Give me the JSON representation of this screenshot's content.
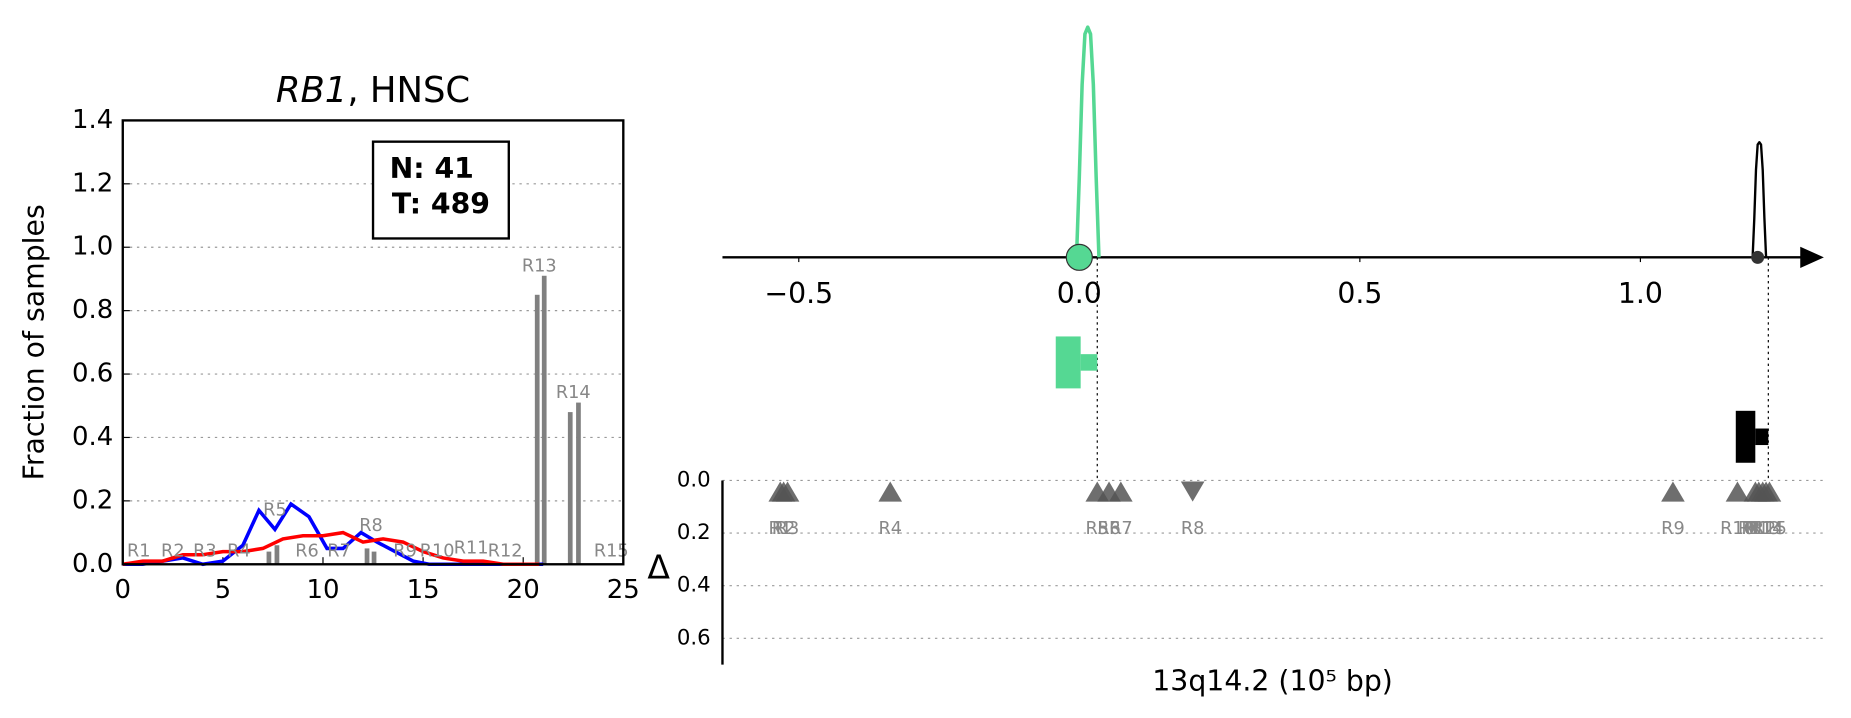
{
  "chart_data": [
    {
      "type": "line",
      "title": [
        "RB1",
        ", HNSC"
      ],
      "ylabel": "Fraction of samples",
      "xlim": [
        0,
        25
      ],
      "xticks": [
        0,
        5,
        10,
        15,
        20,
        25
      ],
      "ylim": [
        0,
        1.4
      ],
      "yticks": [
        {
          "value": 0,
          "label": "0.0"
        },
        0.2,
        0.4,
        0.6,
        0.8,
        {
          "value": 1,
          "label": "1.0"
        },
        1.2,
        1.4
      ],
      "grid": true,
      "annotation": [
        "N: 41",
        "T: 489"
      ],
      "series": [
        {
          "color": "#0000ff",
          "x": [
            0,
            1,
            2,
            3,
            4,
            5,
            6,
            6.8,
            7.6,
            8.4,
            9.3,
            10.2,
            11,
            11.9,
            12.7,
            13.6,
            14.5,
            15.3,
            16,
            21
          ],
          "values": [
            0,
            0,
            0.01,
            0.02,
            0,
            0.01,
            0.06,
            0.17,
            0.11,
            0.19,
            0.15,
            0.05,
            0.05,
            0.1,
            0.07,
            0.04,
            0.01,
            0,
            0,
            0
          ]
        },
        {
          "color": "#ff0000",
          "x": [
            0,
            1,
            2,
            3,
            4,
            5,
            6,
            7,
            8,
            9,
            10,
            11,
            12,
            13,
            14,
            15,
            16,
            17,
            18,
            19,
            20,
            20.8
          ],
          "values": [
            0,
            0.01,
            0.01,
            0.03,
            0.03,
            0.04,
            0.04,
            0.05,
            0.08,
            0.09,
            0.09,
            0.1,
            0.07,
            0.08,
            0.07,
            0.04,
            0.02,
            0.01,
            0.01,
            0,
            0,
            0
          ]
        }
      ],
      "bars": {
        "color": "#808080",
        "x": [
          7.3,
          7.7,
          12.2,
          12.55,
          20.7,
          21.05,
          22.35,
          22.76
        ],
        "values": [
          0.04,
          0.06,
          0.05,
          0.04,
          0.85,
          0.91,
          0.48,
          0.51
        ]
      },
      "region_labels": {
        "color": "#888888",
        "texts": [
          "R1",
          "R2",
          "R3",
          "R4",
          "R5",
          "R6",
          "R7",
          "R8",
          "R9",
          "R10",
          "R11",
          "R12",
          "R13",
          "R14",
          "R15"
        ],
        "x": [
          0.8,
          2.5,
          4.1,
          5.8,
          7.6,
          9.2,
          10.8,
          12.4,
          14.1,
          15.7,
          17.4,
          19.1,
          20.8,
          22.5,
          24.4
        ],
        "y": [
          0.04,
          0.04,
          0.04,
          0.04,
          0.17,
          0.04,
          0.04,
          0.12,
          0.04,
          0.04,
          0.05,
          0.04,
          0.94,
          0.54,
          0.04
        ]
      }
    },
    {
      "type": "density",
      "xlim": [
        -0.636,
        1.327
      ],
      "xticks": [
        {
          "value": -0.5,
          "label": "−0.5"
        },
        {
          "value": 0,
          "label": "0.0"
        },
        0.5,
        {
          "value": 1,
          "label": "1.0"
        }
      ],
      "ylim": [
        0,
        1.05
      ],
      "series": [
        {
          "color": "#55d893",
          "x": [
            -0.005,
            0,
            0.005,
            0.01,
            0.015,
            0.02,
            0.025,
            0.03,
            0.035
          ],
          "values": [
            0,
            0.35,
            0.75,
            0.97,
            1.0,
            0.97,
            0.75,
            0.35,
            0
          ]
        },
        {
          "color": "#000000",
          "x": [
            1.2,
            1.203,
            1.206,
            1.209,
            1.212,
            1.215,
            1.218,
            1.221,
            1.224
          ],
          "values": [
            0,
            0.17,
            0.38,
            0.49,
            0.5,
            0.49,
            0.38,
            0.17,
            0
          ]
        }
      ],
      "points": {
        "x": [
          0,
          1.209
        ],
        "colors": [
          "#55d893",
          "#333333"
        ]
      },
      "intervals": [
        {
          "color": "#55d893",
          "x": [
            -0.042,
            0.032
          ]
        },
        {
          "color": "#000000",
          "x": [
            1.17,
            1.228
          ]
        }
      ]
    },
    {
      "type": "scatter",
      "xlim": [
        -0.636,
        1.327
      ],
      "ylim": [
        0,
        0.7
      ],
      "yticks": [
        {
          "value": 0,
          "label": "0.0"
        },
        0.2,
        0.4,
        0.6
      ],
      "grid": true,
      "ylabel": "Δ",
      "xlabel": "13q14.2 (10⁵ bp)",
      "color": "#555555",
      "labels": [
        "R1",
        "R2",
        "R3",
        "R4",
        "R5",
        "R6",
        "R7",
        "R8",
        "R9",
        "R10",
        "R11",
        "R12",
        "R13",
        "R14",
        "R15"
      ],
      "x": [
        -0.533,
        -0.527,
        -0.52,
        -0.337,
        0.032,
        0.053,
        0.074,
        0.202,
        1.058,
        1.173,
        1.205,
        1.211,
        1.218,
        1.224,
        1.23
      ],
      "values": [
        0.04,
        0.04,
        0.04,
        0.04,
        0.04,
        0.04,
        0.04,
        0.04,
        0.04,
        0.04,
        0.04,
        0.04,
        0.04,
        0.04,
        0.04
      ],
      "markers": [
        "up",
        "up",
        "up",
        "up",
        "up",
        "up",
        "up",
        "down",
        "up",
        "up",
        "up",
        "up",
        "up",
        "up",
        "up"
      ]
    }
  ]
}
